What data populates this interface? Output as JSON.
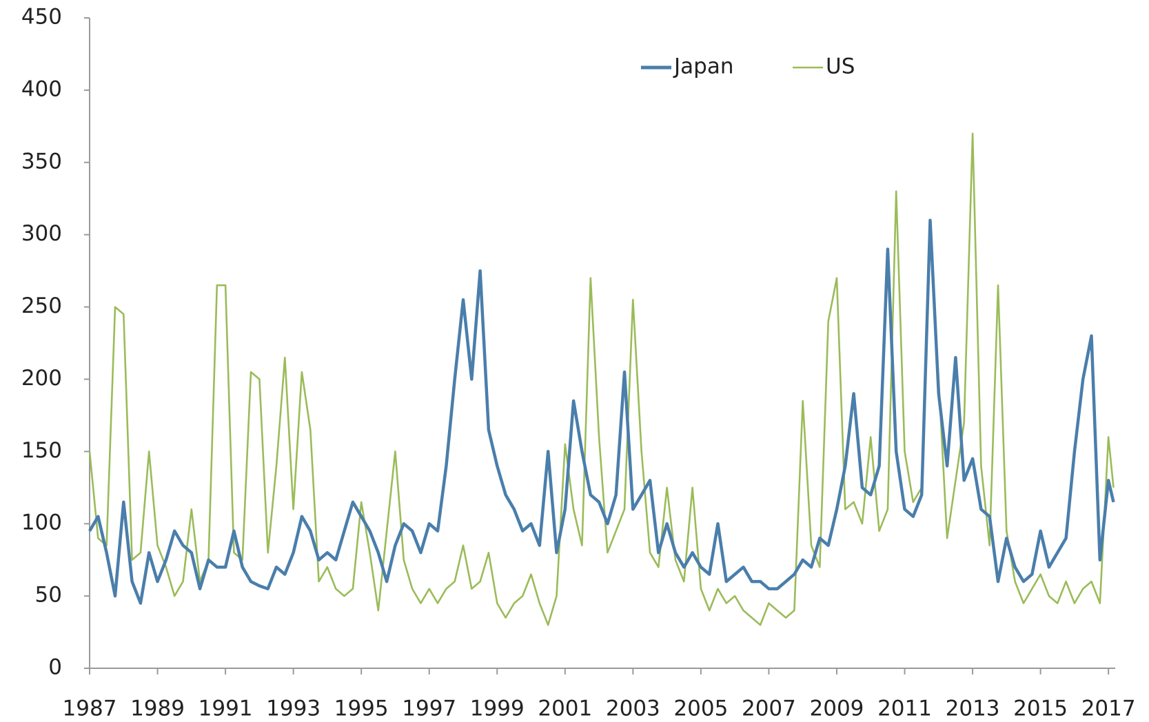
{
  "chart_data": {
    "type": "line",
    "x": [
      1987,
      1987.25,
      1987.5,
      1987.75,
      1988,
      1988.25,
      1988.5,
      1988.75,
      1989,
      1989.25,
      1989.5,
      1989.75,
      1990,
      1990.25,
      1990.5,
      1990.75,
      1991,
      1991.25,
      1991.5,
      1991.75,
      1992,
      1992.25,
      1992.5,
      1992.75,
      1993,
      1993.25,
      1993.5,
      1993.75,
      1994,
      1994.25,
      1994.5,
      1994.75,
      1995,
      1995.25,
      1995.5,
      1995.75,
      1996,
      1996.25,
      1996.5,
      1996.75,
      1997,
      1997.25,
      1997.5,
      1997.75,
      1998,
      1998.25,
      1998.5,
      1998.75,
      1999,
      1999.25,
      1999.5,
      1999.75,
      2000,
      2000.25,
      2000.5,
      2000.75,
      2001,
      2001.25,
      2001.5,
      2001.75,
      2002,
      2002.25,
      2002.5,
      2002.75,
      2003,
      2003.25,
      2003.5,
      2003.75,
      2004,
      2004.25,
      2004.5,
      2004.75,
      2005,
      2005.25,
      2005.5,
      2005.75,
      2006,
      2006.25,
      2006.5,
      2006.75,
      2007,
      2007.25,
      2007.5,
      2007.75,
      2008,
      2008.25,
      2008.5,
      2008.75,
      2009,
      2009.25,
      2009.5,
      2009.75,
      2010,
      2010.25,
      2010.5,
      2010.75,
      2011,
      2011.25,
      2011.5,
      2011.75,
      2012,
      2012.25,
      2012.5,
      2012.75,
      2013,
      2013.25,
      2013.5,
      2013.75,
      2014,
      2014.25,
      2014.5,
      2014.75,
      2015,
      2015.25,
      2015.5,
      2015.75,
      2016,
      2016.25,
      2016.5,
      2016.75,
      2017,
      2017.15
    ],
    "series": [
      {
        "name": "Japan",
        "color": "#4a7eab",
        "values": [
          95,
          105,
          80,
          50,
          115,
          60,
          45,
          80,
          60,
          75,
          95,
          85,
          80,
          55,
          75,
          70,
          70,
          95,
          70,
          60,
          57,
          55,
          70,
          65,
          80,
          105,
          95,
          75,
          80,
          75,
          95,
          115,
          105,
          95,
          80,
          60,
          85,
          100,
          95,
          80,
          100,
          95,
          140,
          200,
          255,
          200,
          275,
          165,
          140,
          120,
          110,
          95,
          100,
          85,
          150,
          80,
          110,
          185,
          150,
          120,
          115,
          100,
          120,
          205,
          110,
          120,
          130,
          80,
          100,
          80,
          70,
          80,
          70,
          65,
          100,
          60,
          65,
          70,
          60,
          60,
          55,
          55,
          60,
          65,
          75,
          70,
          90,
          85,
          110,
          140,
          190,
          125,
          120,
          140,
          290,
          150,
          110,
          105,
          120,
          310,
          190,
          140,
          215,
          130,
          145,
          110,
          105,
          60,
          90,
          70,
          60,
          65,
          95,
          70,
          80,
          90,
          150,
          200,
          230,
          75,
          130,
          115
        ]
      },
      {
        "name": "US",
        "color": "#9bbb59",
        "values": [
          150,
          90,
          85,
          250,
          245,
          75,
          80,
          150,
          85,
          70,
          50,
          60,
          110,
          60,
          75,
          265,
          265,
          80,
          75,
          205,
          200,
          80,
          140,
          215,
          110,
          205,
          165,
          60,
          70,
          55,
          50,
          55,
          115,
          80,
          40,
          95,
          150,
          75,
          55,
          45,
          55,
          45,
          55,
          60,
          85,
          55,
          60,
          80,
          45,
          35,
          45,
          50,
          65,
          45,
          30,
          50,
          155,
          110,
          85,
          270,
          160,
          80,
          95,
          110,
          255,
          150,
          80,
          70,
          125,
          75,
          60,
          125,
          55,
          40,
          55,
          45,
          50,
          40,
          35,
          30,
          45,
          40,
          35,
          40,
          185,
          85,
          70,
          240,
          270,
          110,
          115,
          100,
          160,
          95,
          110,
          330,
          150,
          115,
          125,
          300,
          200,
          90,
          130,
          170,
          370,
          140,
          85,
          265,
          95,
          60,
          45,
          55,
          65,
          50,
          45,
          60,
          45,
          55,
          60,
          45,
          160,
          125
        ]
      }
    ],
    "xlim": [
      1987,
      2017.2
    ],
    "xticks": [
      1987,
      1989,
      1991,
      1993,
      1995,
      1997,
      1999,
      2001,
      2003,
      2005,
      2007,
      2009,
      2011,
      2013,
      2015,
      2017
    ],
    "ylim": [
      0,
      450
    ],
    "yticks": [
      0,
      50,
      100,
      150,
      200,
      250,
      300,
      350,
      400,
      450
    ],
    "legend": "upper center"
  }
}
